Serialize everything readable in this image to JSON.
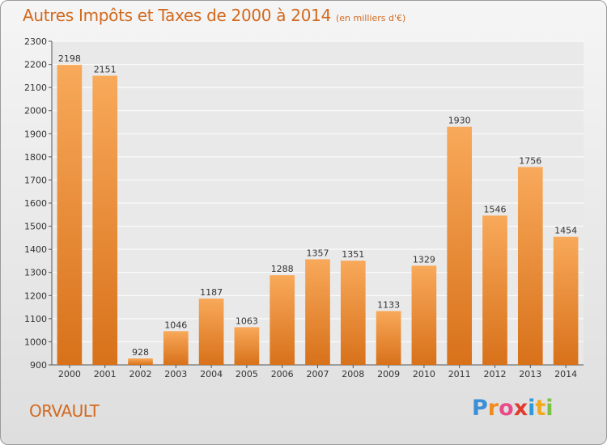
{
  "header": {
    "title": "Autres Impôts et Taxes de 2000 à 2014",
    "subtitle": "(en milliers d'€)"
  },
  "footer": {
    "place": "ORVAULT",
    "brand": "Proxiti",
    "brand_letters": [
      {
        "ch": "P",
        "color": "#3a8fd6"
      },
      {
        "ch": "r",
        "color": "#f08c1e"
      },
      {
        "ch": "o",
        "color": "#e84b8a"
      },
      {
        "ch": "x",
        "color": "#e23a2f"
      },
      {
        "ch": "i",
        "color": "#2e9ad6"
      },
      {
        "ch": "t",
        "color": "#f2a81d"
      },
      {
        "ch": "i",
        "color": "#7cc242"
      }
    ]
  },
  "chart_data": {
    "type": "bar",
    "title": "Autres Impôts et Taxes de 2000 à 2014",
    "subtitle": "(en milliers d'€)",
    "categories": [
      "2000",
      "2001",
      "2002",
      "2003",
      "2004",
      "2005",
      "2006",
      "2007",
      "2008",
      "2009",
      "2010",
      "2011",
      "2012",
      "2013",
      "2014"
    ],
    "values": [
      2198,
      2151,
      928,
      1046,
      1187,
      1063,
      1288,
      1357,
      1351,
      1133,
      1329,
      1930,
      1546,
      1756,
      1454
    ],
    "ylim": [
      900,
      2300
    ],
    "yticks": [
      900,
      1000,
      1100,
      1200,
      1300,
      1400,
      1500,
      1600,
      1700,
      1800,
      1900,
      2000,
      2100,
      2200,
      2300
    ],
    "grid": true,
    "bar_color_top": "#f8a95a",
    "bar_color_bottom": "#d8711a"
  }
}
